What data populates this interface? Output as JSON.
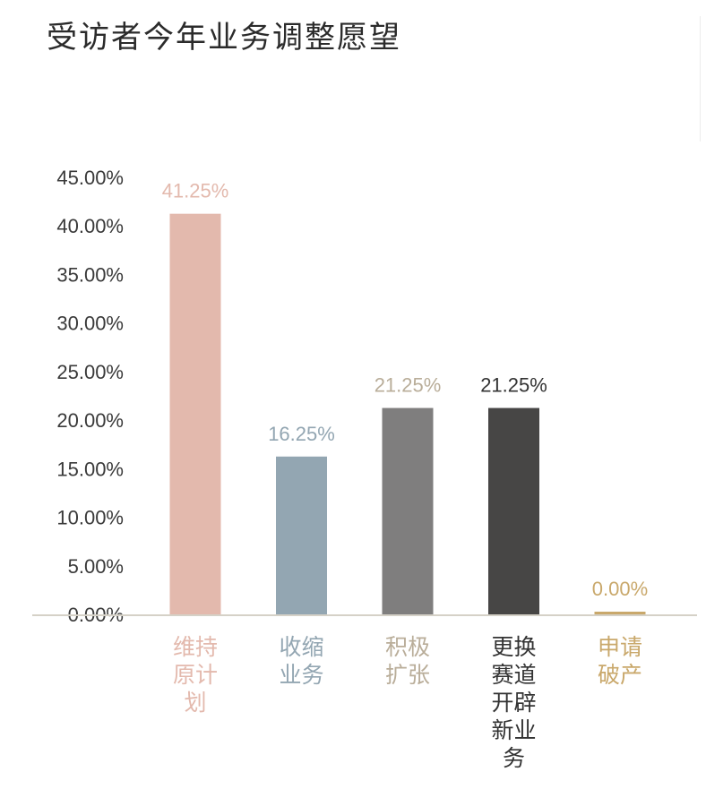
{
  "chart_data": {
    "type": "bar",
    "title": "受访者今年业务调整愿望",
    "categories": [
      "维持原计划",
      "收缩业务",
      "积极扩张",
      "更换赛道开辟新业务",
      "申请破产"
    ],
    "category_lines": [
      [
        "维持",
        "原计",
        "划"
      ],
      [
        "收缩",
        "业务"
      ],
      [
        "积极",
        "扩张"
      ],
      [
        "更换",
        "赛道",
        "开辟",
        "新业",
        "务"
      ],
      [
        "申请",
        "破产"
      ]
    ],
    "values": [
      41.25,
      16.25,
      21.25,
      21.25,
      0.0
    ],
    "value_labels": [
      "41.25%",
      "16.25%",
      "21.25%",
      "21.25%",
      "0.00%"
    ],
    "colors": [
      "#e3b9ad",
      "#93a6b2",
      "#7f7e7e",
      "#474645",
      "#c9a86b"
    ],
    "label_colors": [
      "#e3b9ad",
      "#93a6b2",
      "#b9ad99",
      "#333333",
      "#c9a86b"
    ],
    "ylim": [
      0,
      45
    ],
    "yticks": [
      "0.00%",
      "5.00%",
      "10.00%",
      "15.00%",
      "20.00%",
      "25.00%",
      "30.00%",
      "35.00%",
      "40.00%",
      "45.00%"
    ],
    "ytick_values": [
      0,
      5,
      10,
      15,
      20,
      25,
      30,
      35,
      40,
      45
    ],
    "xlabel": "",
    "ylabel": "",
    "grid": false,
    "legend": "none"
  }
}
